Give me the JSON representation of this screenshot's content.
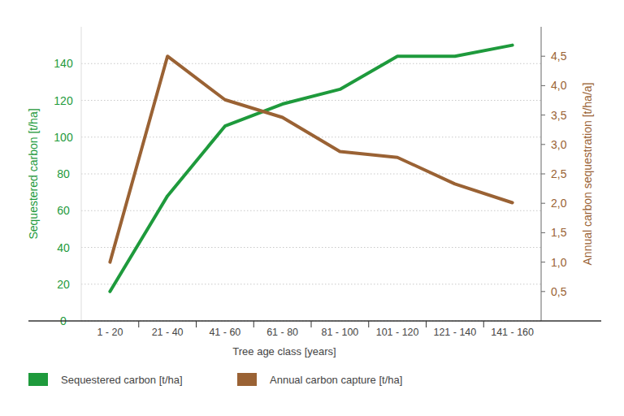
{
  "chart_data": {
    "type": "line",
    "categories": [
      "1 - 20",
      "21 - 40",
      "41 - 60",
      "61 - 80",
      "81 - 100",
      "101 - 120",
      "121 - 140",
      "141 - 160"
    ],
    "x_label": "Tree age class [years]",
    "y_label": "Sequestered carbon [t/ha]",
    "y2_label": "Annual carbon sequestration [t/ha/a]",
    "ylim": [
      0,
      160
    ],
    "yticks": [
      0,
      20,
      40,
      60,
      80,
      100,
      120,
      140
    ],
    "y2lim": [
      0,
      5
    ],
    "y2ticks": [
      {
        "value": 0.5,
        "label": "0,5"
      },
      {
        "value": 1.0,
        "label": "1,0"
      },
      {
        "value": 1.5,
        "label": "1,5"
      },
      {
        "value": 2.0,
        "label": "2,0"
      },
      {
        "value": 2.5,
        "label": "2,5"
      },
      {
        "value": 3.0,
        "label": "3,0"
      },
      {
        "value": 3.5,
        "label": "3,5"
      },
      {
        "value": 4.0,
        "label": "4,0"
      },
      {
        "value": 4.5,
        "label": "4,5"
      }
    ],
    "grid": true,
    "legend": "bottom",
    "series": [
      {
        "name": "Sequestered carbon [t/ha]",
        "color": "#1e9a3c",
        "values": [
          16,
          68,
          106,
          118,
          126,
          144,
          144,
          150
        ]
      },
      {
        "name": "Annual carbon capture  [t/ha]",
        "color": "#9a6234",
        "axis": "y2",
        "values": [
          1.0,
          4.5,
          3.76,
          3.46,
          2.88,
          2.78,
          2.33,
          2.01
        ]
      }
    ]
  }
}
